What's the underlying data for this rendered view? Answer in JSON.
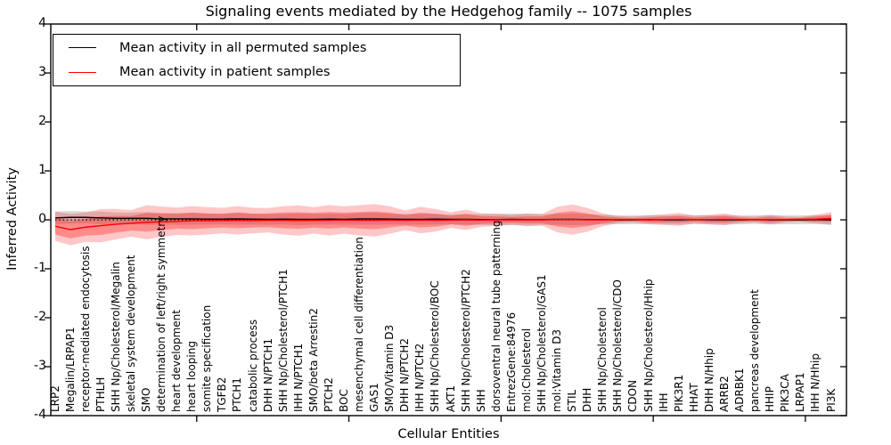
{
  "chart_data": {
    "type": "line",
    "title": "Signaling events mediated by the Hedgehog family -- 1075 samples",
    "xlabel": "Cellular Entities",
    "ylabel": "Inferred Activity",
    "ylim": [
      -4,
      4
    ],
    "yticks": [
      -4,
      -3,
      -2,
      -1,
      0,
      1,
      2,
      3,
      4
    ],
    "grid": false,
    "legend_position": "upper left",
    "zero_line": {
      "style": "dotted",
      "color": "#000000"
    },
    "categories": [
      "LRP2",
      "Megalin/LRPAP1",
      "receptor-mediated endocytosis",
      "PTHLH",
      "SHH Np/Cholesterol/Megalin",
      "skeletal system development",
      "SMO",
      "determination of left/right symmetry",
      "heart development",
      "heart looping",
      "somite specification",
      "TGFB2",
      "PTCH1",
      "catabolic process",
      "DHH N/PTCH1",
      "SHH Np/Cholesterol/PTCH1",
      "IHH N/PTCH1",
      "SMO/beta Arrestin2",
      "PTCH2",
      "BOC",
      "mesenchymal cell differentiation",
      "GAS1",
      "SMO/Vitamin D3",
      "DHH N/PTCH2",
      "IHH N/PTCH2",
      "SHH Np/Cholesterol/BOC",
      "AKT1",
      "SHH Np/Cholesterol/PTCH2",
      "SHH",
      "dorsoventral neural tube patterning",
      "EntrezGene:84976",
      "mol:Cholesterol",
      "SHH Np/Cholesterol/GAS1",
      "mol:Vitamin D3",
      "STIL",
      "DHH",
      "SHH Np/Cholesterol",
      "SHH Np/Cholesterol/CDO",
      "CDON",
      "SHH Np/Cholesterol/Hhip",
      "IHH",
      "PIK3R1",
      "HHAT",
      "DHH N/Hhip",
      "ARRB2",
      "ADRBK1",
      "pancreas development",
      "HHIP",
      "PIK3CA",
      "LRPAP1",
      "IHH N/Hhip",
      "PI3K"
    ],
    "series": [
      {
        "name": "Mean activity in all permuted samples",
        "color": "#000000",
        "values": [
          0.04,
          0.05,
          0.05,
          0.04,
          0.03,
          0.03,
          0.03,
          0.02,
          0.02,
          0.02,
          0.015,
          0.015,
          0.02,
          0.015,
          0.01,
          0.015,
          0.01,
          0.01,
          0.015,
          0.01,
          0.02,
          0.02,
          0.015,
          0.01,
          0.01,
          0.015,
          0.01,
          0.01,
          0.005,
          0.005,
          0.01,
          0.005,
          0.005,
          0.01,
          0.01,
          0.005,
          0.005,
          0,
          0,
          0.005,
          0,
          0,
          0.005,
          0,
          0,
          0,
          0.005,
          0,
          0,
          0,
          0.005,
          0
        ]
      },
      {
        "name": "Mean activity in patient samples",
        "color": "#ff0000",
        "values": [
          -0.13,
          -0.2,
          -0.15,
          -0.12,
          -0.09,
          -0.07,
          -0.05,
          -0.04,
          -0.03,
          -0.02,
          -0.02,
          -0.015,
          -0.01,
          -0.015,
          -0.01,
          -0.01,
          -0.015,
          -0.01,
          -0.01,
          -0.005,
          -0.01,
          -0.01,
          -0.005,
          -0.01,
          -0.005,
          -0.01,
          -0.005,
          0,
          -0.005,
          0,
          0,
          0,
          0,
          0.005,
          0.005,
          0,
          0,
          0.005,
          0.005,
          0,
          0.005,
          0.01,
          0.005,
          0.005,
          0.01,
          0.005,
          0.005,
          0.005,
          0.005,
          0.01,
          0.015,
          0.03
        ]
      }
    ],
    "bands": [
      {
        "name": "permuted-samples-std",
        "center_series": 0,
        "color": "#000000",
        "opacity": 0.15,
        "half_widths": [
          0.13,
          0.13,
          0.12,
          0.13,
          0.12,
          0.12,
          0.13,
          0.12,
          0.12,
          0.12,
          0.11,
          0.11,
          0.12,
          0.11,
          0.11,
          0.11,
          0.12,
          0.11,
          0.11,
          0.11,
          0.12,
          0.12,
          0.11,
          0.11,
          0.11,
          0.11,
          0.1,
          0.11,
          0.11,
          0.12,
          0.12,
          0.12,
          0.11,
          0.11,
          0.12,
          0.11,
          0.1,
          0.09,
          0.09,
          0.09,
          0.09,
          0.1,
          0.09,
          0.09,
          0.1,
          0.09,
          0.09,
          0.09,
          0.09,
          0.09,
          0.09,
          0.1
        ]
      },
      {
        "name": "patient-samples-std-outer",
        "center_series": 1,
        "color": "#ff0000",
        "opacity": 0.22,
        "half_widths": [
          0.3,
          0.32,
          0.3,
          0.34,
          0.31,
          0.27,
          0.35,
          0.31,
          0.28,
          0.3,
          0.28,
          0.26,
          0.29,
          0.26,
          0.25,
          0.29,
          0.31,
          0.27,
          0.31,
          0.28,
          0.31,
          0.33,
          0.28,
          0.2,
          0.27,
          0.23,
          0.16,
          0.21,
          0.14,
          0.12,
          0.1,
          0.13,
          0.12,
          0.26,
          0.31,
          0.24,
          0.13,
          0.07,
          0.06,
          0.09,
          0.11,
          0.13,
          0.08,
          0.1,
          0.12,
          0.07,
          0.06,
          0.1,
          0.06,
          0.05,
          0.09,
          0.13
        ]
      },
      {
        "name": "patient-samples-std-inner",
        "center_series": 1,
        "color": "#ff0000",
        "opacity": 0.3,
        "half_widths": [
          0.17,
          0.18,
          0.17,
          0.19,
          0.17,
          0.15,
          0.19,
          0.17,
          0.15,
          0.17,
          0.15,
          0.14,
          0.16,
          0.14,
          0.14,
          0.16,
          0.17,
          0.15,
          0.17,
          0.15,
          0.17,
          0.18,
          0.15,
          0.11,
          0.15,
          0.13,
          0.09,
          0.12,
          0.08,
          0.07,
          0.06,
          0.07,
          0.07,
          0.14,
          0.17,
          0.13,
          0.07,
          0.04,
          0.03,
          0.05,
          0.06,
          0.07,
          0.04,
          0.06,
          0.07,
          0.04,
          0.03,
          0.06,
          0.03,
          0.03,
          0.05,
          0.07
        ]
      }
    ]
  }
}
